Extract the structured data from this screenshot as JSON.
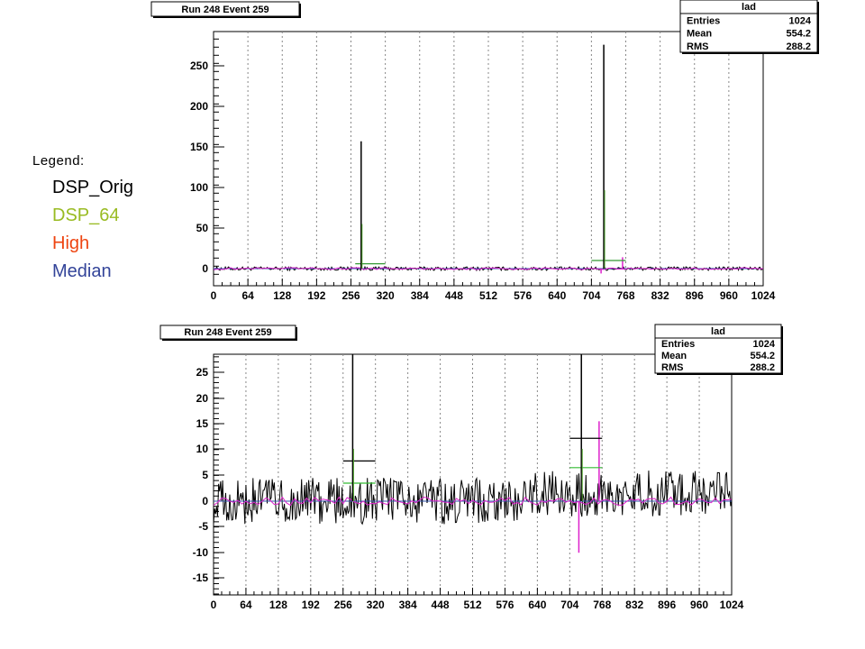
{
  "legend": {
    "title": "Legend:",
    "items": [
      {
        "label": "DSP_Orig",
        "color": "#000000"
      },
      {
        "label": "DSP_64",
        "color": "#99bb22"
      },
      {
        "label": "High",
        "color": "#ee4411"
      },
      {
        "label": "Median",
        "color": "#334499"
      }
    ]
  },
  "chart_data": [
    {
      "type": "line",
      "title": "Run 248 Event 259",
      "stats": {
        "name": "lad",
        "rows": [
          {
            "label": "Entries",
            "value": "1024"
          },
          {
            "label": "Mean",
            "value": "554.2"
          },
          {
            "label": "RMS",
            "value": "288.2"
          }
        ]
      },
      "xlim": [
        0,
        1024
      ],
      "ylim": [
        -7,
        286
      ],
      "xticks": [
        "0",
        "64",
        "128",
        "192",
        "256",
        "320",
        "384",
        "448",
        "512",
        "576",
        "640",
        "704",
        "768",
        "832",
        "896",
        "960",
        "1024"
      ],
      "yticks": [
        "0",
        "50",
        "100",
        "150",
        "200",
        "250"
      ],
      "grid_x": true,
      "peaks": [
        {
          "x": 275,
          "y": 157
        },
        {
          "x": 727,
          "y": 276
        }
      ],
      "steps": [
        {
          "x0": 264,
          "x1": 320,
          "y": 6,
          "color": "#339933"
        },
        {
          "x0": 704,
          "x1": 768,
          "y": 10,
          "color": "#339933"
        }
      ]
    },
    {
      "type": "line",
      "title": "Run 248 Event 259",
      "stats": {
        "name": "lad",
        "rows": [
          {
            "label": "Entries",
            "value": "1024"
          },
          {
            "label": "Mean",
            "value": "554.2"
          },
          {
            "label": "RMS",
            "value": "288.2"
          }
        ]
      },
      "xlim": [
        0,
        1024
      ],
      "ylim": [
        -18,
        29
      ],
      "xticks": [
        "0",
        "64",
        "128",
        "192",
        "256",
        "320",
        "384",
        "448",
        "512",
        "576",
        "640",
        "704",
        "768",
        "832",
        "896",
        "960",
        "1024"
      ],
      "yticks": [
        "-15",
        "-10",
        "-5",
        "0",
        "5",
        "10",
        "15",
        "20",
        "25"
      ],
      "grid_x": true,
      "peaks": [
        {
          "x": 275,
          "y": 29
        },
        {
          "x": 727,
          "y": 29
        }
      ],
      "steps": [
        {
          "x0": 256,
          "x1": 320,
          "y": 7.8,
          "color": "#000000"
        },
        {
          "x0": 704,
          "x1": 768,
          "y": 12.2,
          "color": "#000000"
        },
        {
          "x0": 704,
          "x1": 768,
          "y": 6.5,
          "color": "#33bb33"
        },
        {
          "x0": 256,
          "x1": 320,
          "y": 3.5,
          "color": "#33bb33"
        }
      ]
    }
  ]
}
